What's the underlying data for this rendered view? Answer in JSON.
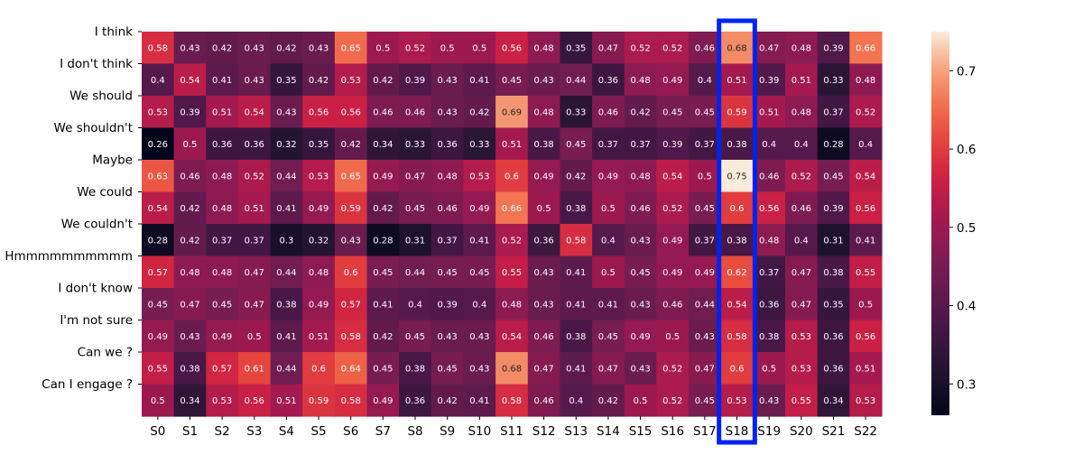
{
  "chart_data": {
    "type": "heatmap",
    "row_labels": [
      "I think",
      "I don't think",
      "We should",
      "We shouldn't",
      "Maybe",
      "We could",
      "We couldn't",
      "Hmmmmmmmmmm",
      "I don't know",
      "I'm not sure",
      "Can we ?",
      "Can I engage ?"
    ],
    "col_labels": [
      "S0",
      "S1",
      "S2",
      "S3",
      "S4",
      "S5",
      "S6",
      "S7",
      "S8",
      "S9",
      "S10",
      "S11",
      "S12",
      "S13",
      "S14",
      "S15",
      "S16",
      "S17",
      "S18",
      "S19",
      "S20",
      "S21",
      "S22"
    ],
    "values": [
      [
        0.58,
        0.43,
        0.42,
        0.43,
        0.42,
        0.43,
        0.65,
        0.5,
        0.52,
        0.5,
        0.5,
        0.56,
        0.48,
        0.35,
        0.47,
        0.52,
        0.52,
        0.46,
        0.68,
        0.47,
        0.48,
        0.39,
        0.66
      ],
      [
        0.4,
        0.54,
        0.41,
        0.43,
        0.35,
        0.42,
        0.53,
        0.42,
        0.39,
        0.43,
        0.41,
        0.45,
        0.43,
        0.44,
        0.36,
        0.48,
        0.49,
        0.4,
        0.51,
        0.39,
        0.51,
        0.33,
        0.48
      ],
      [
        0.53,
        0.39,
        0.51,
        0.54,
        0.43,
        0.56,
        0.56,
        0.46,
        0.46,
        0.43,
        0.42,
        0.69,
        0.48,
        0.33,
        0.46,
        0.42,
        0.45,
        0.45,
        0.59,
        0.51,
        0.48,
        0.37,
        0.52
      ],
      [
        0.26,
        0.5,
        0.36,
        0.36,
        0.32,
        0.35,
        0.42,
        0.34,
        0.33,
        0.36,
        0.33,
        0.51,
        0.38,
        0.45,
        0.37,
        0.37,
        0.39,
        0.37,
        0.38,
        0.4,
        0.4,
        0.28,
        0.4
      ],
      [
        0.63,
        0.46,
        0.48,
        0.52,
        0.44,
        0.53,
        0.65,
        0.49,
        0.47,
        0.48,
        0.53,
        0.6,
        0.49,
        0.42,
        0.49,
        0.48,
        0.54,
        0.5,
        0.75,
        0.46,
        0.52,
        0.45,
        0.54
      ],
      [
        0.54,
        0.42,
        0.48,
        0.51,
        0.41,
        0.49,
        0.59,
        0.42,
        0.45,
        0.46,
        0.49,
        0.66,
        0.5,
        0.38,
        0.5,
        0.46,
        0.52,
        0.45,
        0.6,
        0.56,
        0.46,
        0.39,
        0.56
      ],
      [
        0.28,
        0.42,
        0.37,
        0.37,
        0.3,
        0.32,
        0.43,
        0.28,
        0.31,
        0.37,
        0.41,
        0.52,
        0.36,
        0.58,
        0.4,
        0.43,
        0.49,
        0.37,
        0.38,
        0.48,
        0.4,
        0.31,
        0.41
      ],
      [
        0.57,
        0.48,
        0.48,
        0.47,
        0.44,
        0.48,
        0.6,
        0.45,
        0.44,
        0.45,
        0.45,
        0.55,
        0.43,
        0.41,
        0.5,
        0.45,
        0.49,
        0.49,
        0.62,
        0.37,
        0.47,
        0.38,
        0.55
      ],
      [
        0.45,
        0.47,
        0.45,
        0.47,
        0.38,
        0.49,
        0.57,
        0.41,
        0.4,
        0.39,
        0.4,
        0.48,
        0.43,
        0.41,
        0.41,
        0.43,
        0.46,
        0.44,
        0.54,
        0.36,
        0.47,
        0.35,
        0.5
      ],
      [
        0.49,
        0.43,
        0.49,
        0.5,
        0.41,
        0.51,
        0.58,
        0.42,
        0.45,
        0.43,
        0.43,
        0.54,
        0.46,
        0.38,
        0.45,
        0.49,
        0.5,
        0.43,
        0.58,
        0.38,
        0.53,
        0.36,
        0.56
      ],
      [
        0.55,
        0.38,
        0.57,
        0.61,
        0.44,
        0.6,
        0.64,
        0.45,
        0.38,
        0.45,
        0.43,
        0.68,
        0.47,
        0.41,
        0.47,
        0.43,
        0.52,
        0.47,
        0.6,
        0.5,
        0.53,
        0.36,
        0.51
      ],
      [
        0.5,
        0.34,
        0.53,
        0.56,
        0.51,
        0.59,
        0.58,
        0.49,
        0.36,
        0.42,
        0.41,
        0.58,
        0.46,
        0.4,
        0.42,
        0.5,
        0.52,
        0.45,
        0.53,
        0.43,
        0.55,
        0.34,
        0.53
      ]
    ],
    "vmin": 0.26,
    "vmax": 0.75,
    "colorbar_ticks": [
      0.3,
      0.4,
      0.5,
      0.6,
      0.7
    ],
    "colormap": "rocket",
    "highlight": {
      "column_label": "S18",
      "color": "#0022ee"
    }
  }
}
